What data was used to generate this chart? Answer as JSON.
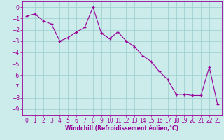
{
  "x": [
    0,
    1,
    2,
    3,
    4,
    5,
    6,
    7,
    8,
    9,
    10,
    11,
    12,
    13,
    14,
    15,
    16,
    17,
    18,
    19,
    20,
    21,
    22,
    23
  ],
  "y": [
    -0.8,
    -0.6,
    -1.2,
    -1.5,
    -3.0,
    -2.7,
    -2.2,
    -1.8,
    0.0,
    -2.3,
    -2.8,
    -2.2,
    -3.0,
    -3.5,
    -4.3,
    -4.8,
    -5.7,
    -6.4,
    -7.7,
    -7.7,
    -7.8,
    -7.8,
    -5.3,
    -8.6
  ],
  "line_color": "#990099",
  "marker": "+",
  "marker_size": 3,
  "bg_color": "#ccecec",
  "grid_color": "#99cccc",
  "xlabel": "Windchill (Refroidissement éolien,°C)",
  "xlabel_color": "#990099",
  "tick_color": "#990099",
  "ylim": [
    -9.5,
    0.5
  ],
  "xlim": [
    -0.5,
    23.5
  ],
  "yticks": [
    0,
    -1,
    -2,
    -3,
    -4,
    -5,
    -6,
    -7,
    -8,
    -9
  ],
  "xticks": [
    0,
    1,
    2,
    3,
    4,
    5,
    6,
    7,
    8,
    9,
    10,
    11,
    12,
    13,
    14,
    15,
    16,
    17,
    18,
    19,
    20,
    21,
    22,
    23
  ],
  "xlabel_fontsize": 5.5,
  "tick_fontsize": 5.5
}
